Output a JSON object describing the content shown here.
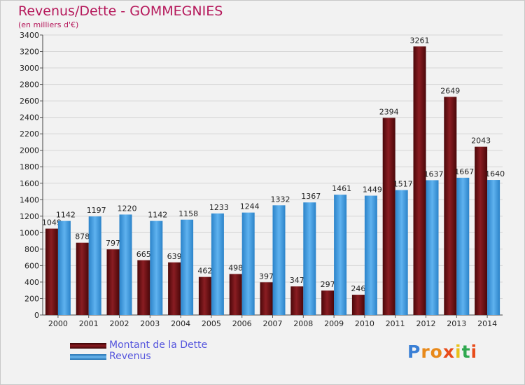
{
  "title": "Revenus/Dette - GOMMEGNIES",
  "subtitle": "(en milliers d'€)",
  "logo": "Proxiti",
  "colors": {
    "dette": "#6b0e12",
    "revenus": "#3a96dc",
    "title": "#b5175a",
    "legend_text": "#5555dd"
  },
  "chart_data": {
    "type": "bar",
    "categories": [
      "2000",
      "2001",
      "2002",
      "2003",
      "2004",
      "2005",
      "2006",
      "2007",
      "2008",
      "2009",
      "2010",
      "2011",
      "2012",
      "2013",
      "2014"
    ],
    "series": [
      {
        "name": "Montant de la Dette",
        "values": [
          1049,
          878,
          797,
          665,
          639,
          462,
          498,
          397,
          347,
          297,
          246,
          2394,
          3261,
          2649,
          2043
        ],
        "labels": [
          "1049",
          "878",
          "797",
          "665",
          "639",
          "462",
          "498",
          "397",
          "347",
          "297",
          "246",
          "2394",
          "3261",
          "2649",
          "2043"
        ]
      },
      {
        "name": "Revenus",
        "values": [
          1142,
          1197,
          1220,
          1142,
          1158,
          1233,
          1244,
          1332,
          1367,
          1461,
          1449,
          1517,
          1637,
          1667,
          1640
        ],
        "labels": [
          "1142",
          "1197",
          "1220",
          "1142",
          "1158",
          "1233",
          "1244",
          "1332",
          "1367",
          "1461",
          "1449",
          "1517",
          "1637",
          "1667",
          "1640"
        ]
      }
    ],
    "yticks": [
      "0",
      "200",
      "400",
      "600",
      "800",
      "1000",
      "1200",
      "1400",
      "1600",
      "1800",
      "2000",
      "2200",
      "2400",
      "2600",
      "2800",
      "3000",
      "3200",
      "3400"
    ],
    "ylim": [
      0,
      3400
    ],
    "xlabel": "",
    "ylabel": "",
    "grid": true,
    "legend": [
      "Montant de la Dette",
      "Revenus"
    ]
  }
}
